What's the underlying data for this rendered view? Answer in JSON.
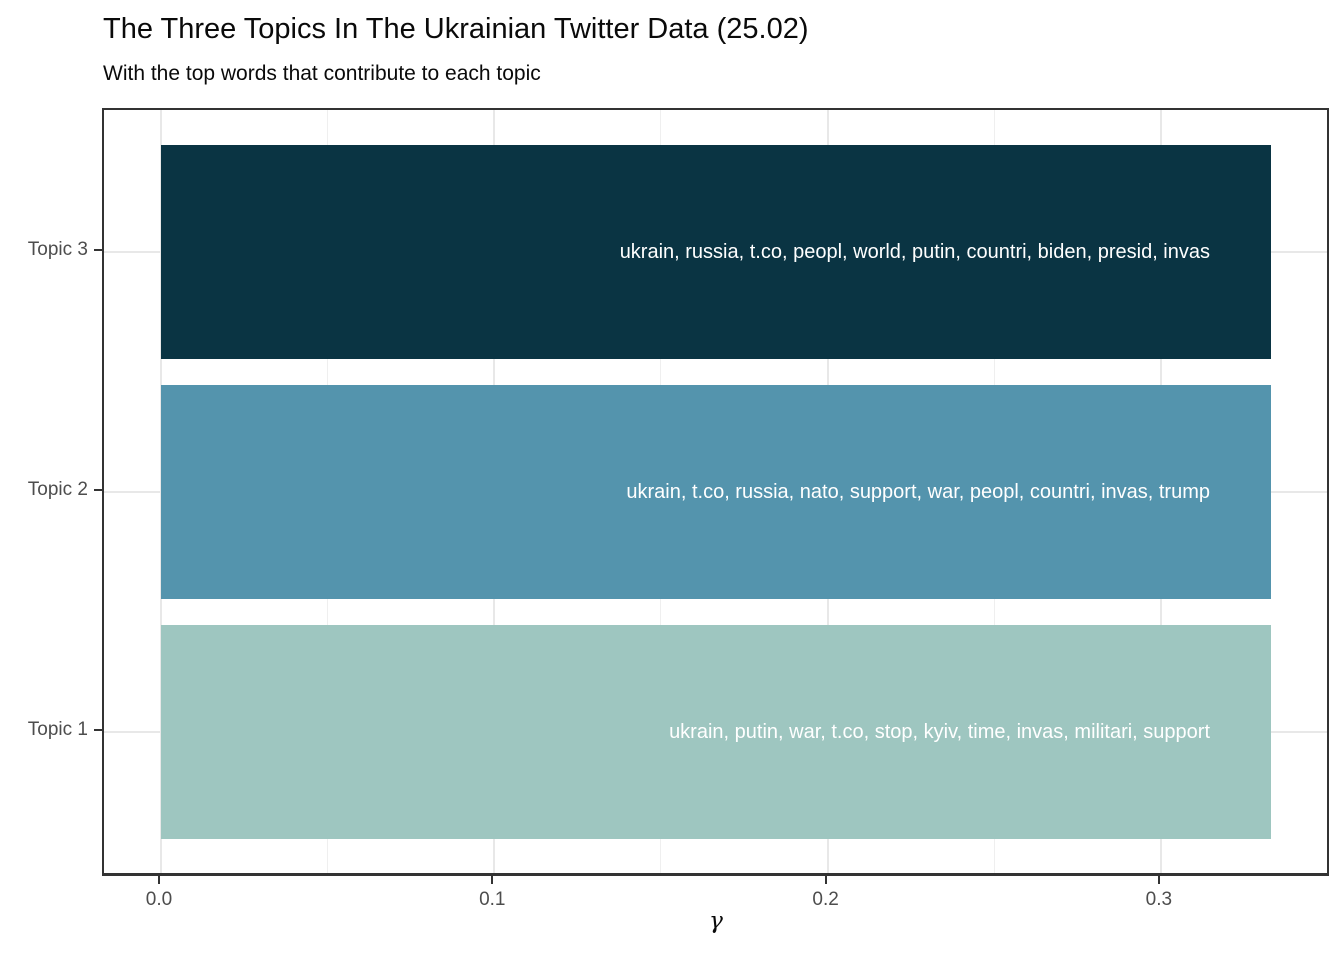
{
  "header": {
    "title": "The Three Topics In The Ukrainian Twitter Data (25.02)",
    "subtitle": "With the top words that contribute to each topic"
  },
  "chart_data": {
    "type": "bar",
    "orientation": "horizontal",
    "title": "The Three Topics In The Ukrainian Twitter Data (25.02)",
    "subtitle": "With the top words that contribute to each topic",
    "xlabel": "γ",
    "ylabel": "",
    "categories_top_to_bottom": [
      "Topic 3",
      "Topic 2",
      "Topic 1"
    ],
    "rows": [
      {
        "category": "Topic 3",
        "value": 0.333,
        "color": "#0a3443",
        "top_words_label": "ukrain, russia, t.co, peopl, world, putin, countri, biden, presid, invas"
      },
      {
        "category": "Topic 2",
        "value": 0.333,
        "color": "#5494ad",
        "top_words_label": "ukrain, t.co, russia, nato, support, war, peopl, countri, invas, trump"
      },
      {
        "category": "Topic 1",
        "value": 0.333,
        "color": "#9ec6c0",
        "top_words_label": "ukrain, putin, war, t.co, stop, kyiv, time, invas, militari, support"
      }
    ],
    "x_ticks": [
      0.0,
      0.1,
      0.2,
      0.3
    ],
    "x_tick_labels": [
      "0.0",
      "0.1",
      "0.2",
      "0.3"
    ],
    "x_minor_ticks": [
      0.05,
      0.15,
      0.25
    ],
    "xlim": [
      -0.0167,
      0.3504
    ],
    "grid": true,
    "legend": "none",
    "bar_label_color": "#ffffff",
    "axis_text_color": "#4d4d4d",
    "panel_border_color": "#333333",
    "gridline_color": "#e8e8e8"
  }
}
